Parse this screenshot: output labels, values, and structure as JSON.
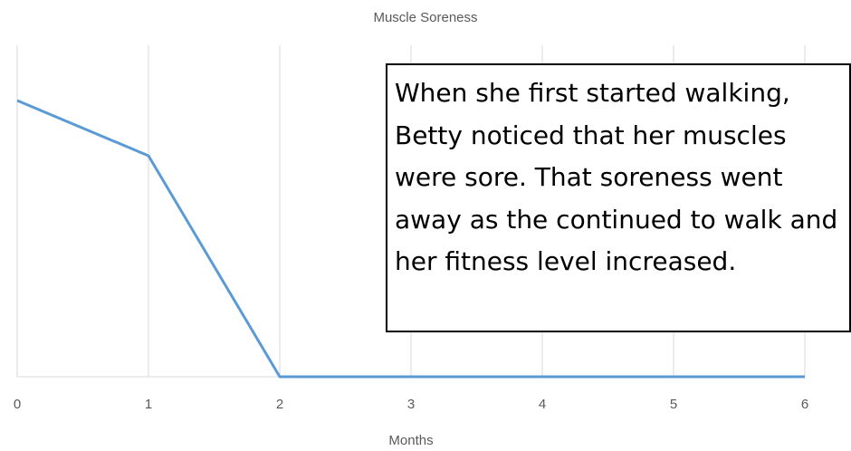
{
  "chart_data": {
    "type": "line",
    "title": "Muscle Soreness",
    "xlabel": "Months",
    "x": [
      0,
      1,
      2,
      3,
      4,
      5,
      6
    ],
    "series": [
      {
        "name": "Muscle Soreness",
        "color": "#5b9bd5",
        "values": [
          5,
          4,
          0,
          0,
          0,
          0,
          0
        ]
      }
    ],
    "xlim": [
      0,
      6
    ],
    "xticks": [
      0,
      1,
      2,
      3,
      4,
      5,
      6
    ],
    "ylim": [
      0,
      6
    ],
    "grid": true,
    "annotation": "When she first started walking, Betty noticed that her muscles were sore. That soreness went away as the continued to walk and her fitness level increased."
  }
}
